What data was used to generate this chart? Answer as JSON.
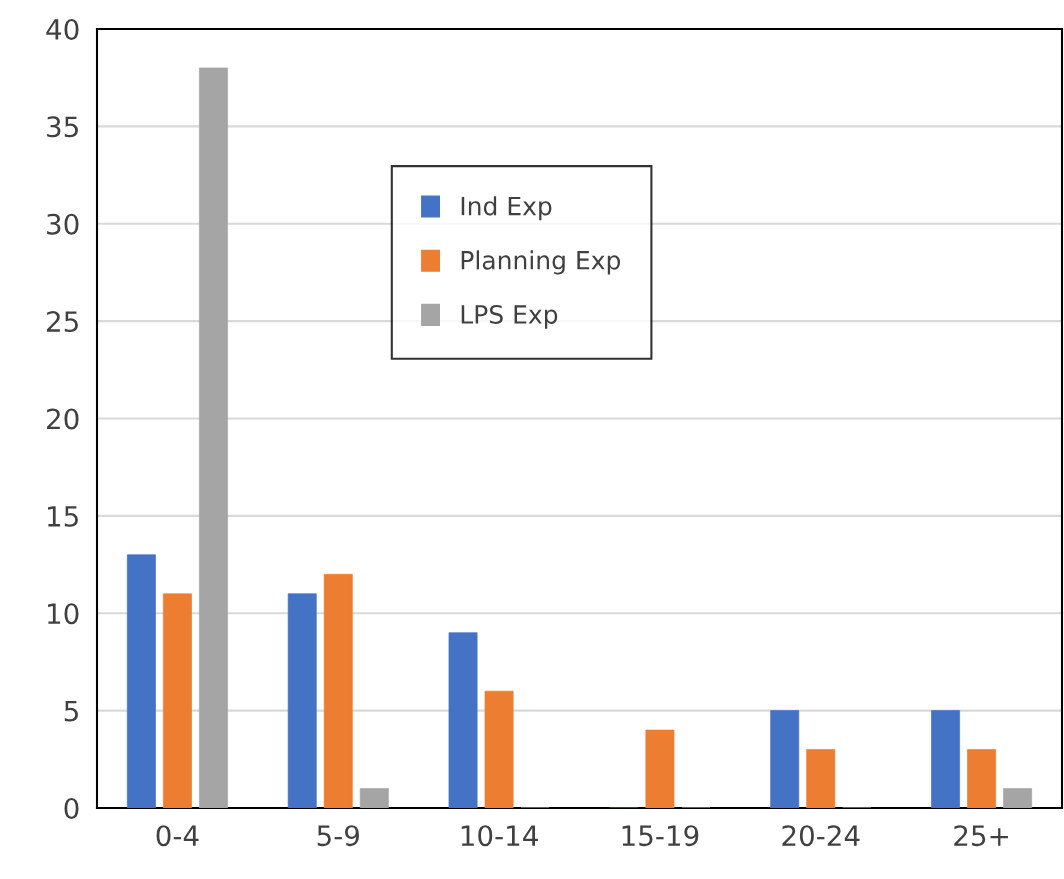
{
  "chart_data": {
    "type": "bar",
    "categories": [
      "0-4",
      "5-9",
      "10-14",
      "15-19",
      "20-24",
      "25+"
    ],
    "series": [
      {
        "name": "Ind Exp",
        "color": "#4472c4",
        "values": [
          13,
          11,
          9,
          0,
          5,
          5
        ]
      },
      {
        "name": "Planning Exp",
        "color": "#ed7d31",
        "values": [
          11,
          12,
          6,
          4,
          3,
          3
        ]
      },
      {
        "name": "LPS Exp",
        "color": "#a5a5a5",
        "values": [
          38,
          1,
          0,
          0,
          0,
          1
        ]
      }
    ],
    "ylim": [
      0,
      40
    ],
    "yticks": [
      0,
      5,
      10,
      15,
      20,
      25,
      30,
      35,
      40
    ],
    "grid": "y",
    "legend": "top"
  }
}
